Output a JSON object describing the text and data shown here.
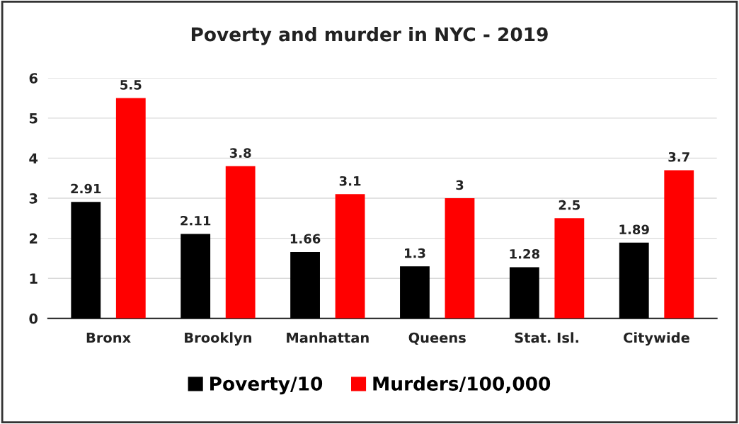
{
  "chart_data": {
    "type": "bar",
    "title": "Poverty and murder in NYC - 2019",
    "categories": [
      "Bronx",
      "Brooklyn",
      "Manhattan",
      "Queens",
      "Stat. Isl.",
      "Citywide"
    ],
    "series": [
      {
        "name": "Poverty/10",
        "color": "#000000",
        "values": [
          2.91,
          2.11,
          1.66,
          1.3,
          1.28,
          1.89
        ]
      },
      {
        "name": "Murders/100,000",
        "color": "#ff0000",
        "values": [
          5.5,
          3.8,
          3.1,
          3,
          2.5,
          3.7
        ]
      }
    ],
    "ylim": [
      0,
      6
    ],
    "yticks": [
      0,
      1,
      2,
      3,
      4,
      5,
      6
    ],
    "grid": "y",
    "legend": "bottom",
    "data_labels": true
  }
}
